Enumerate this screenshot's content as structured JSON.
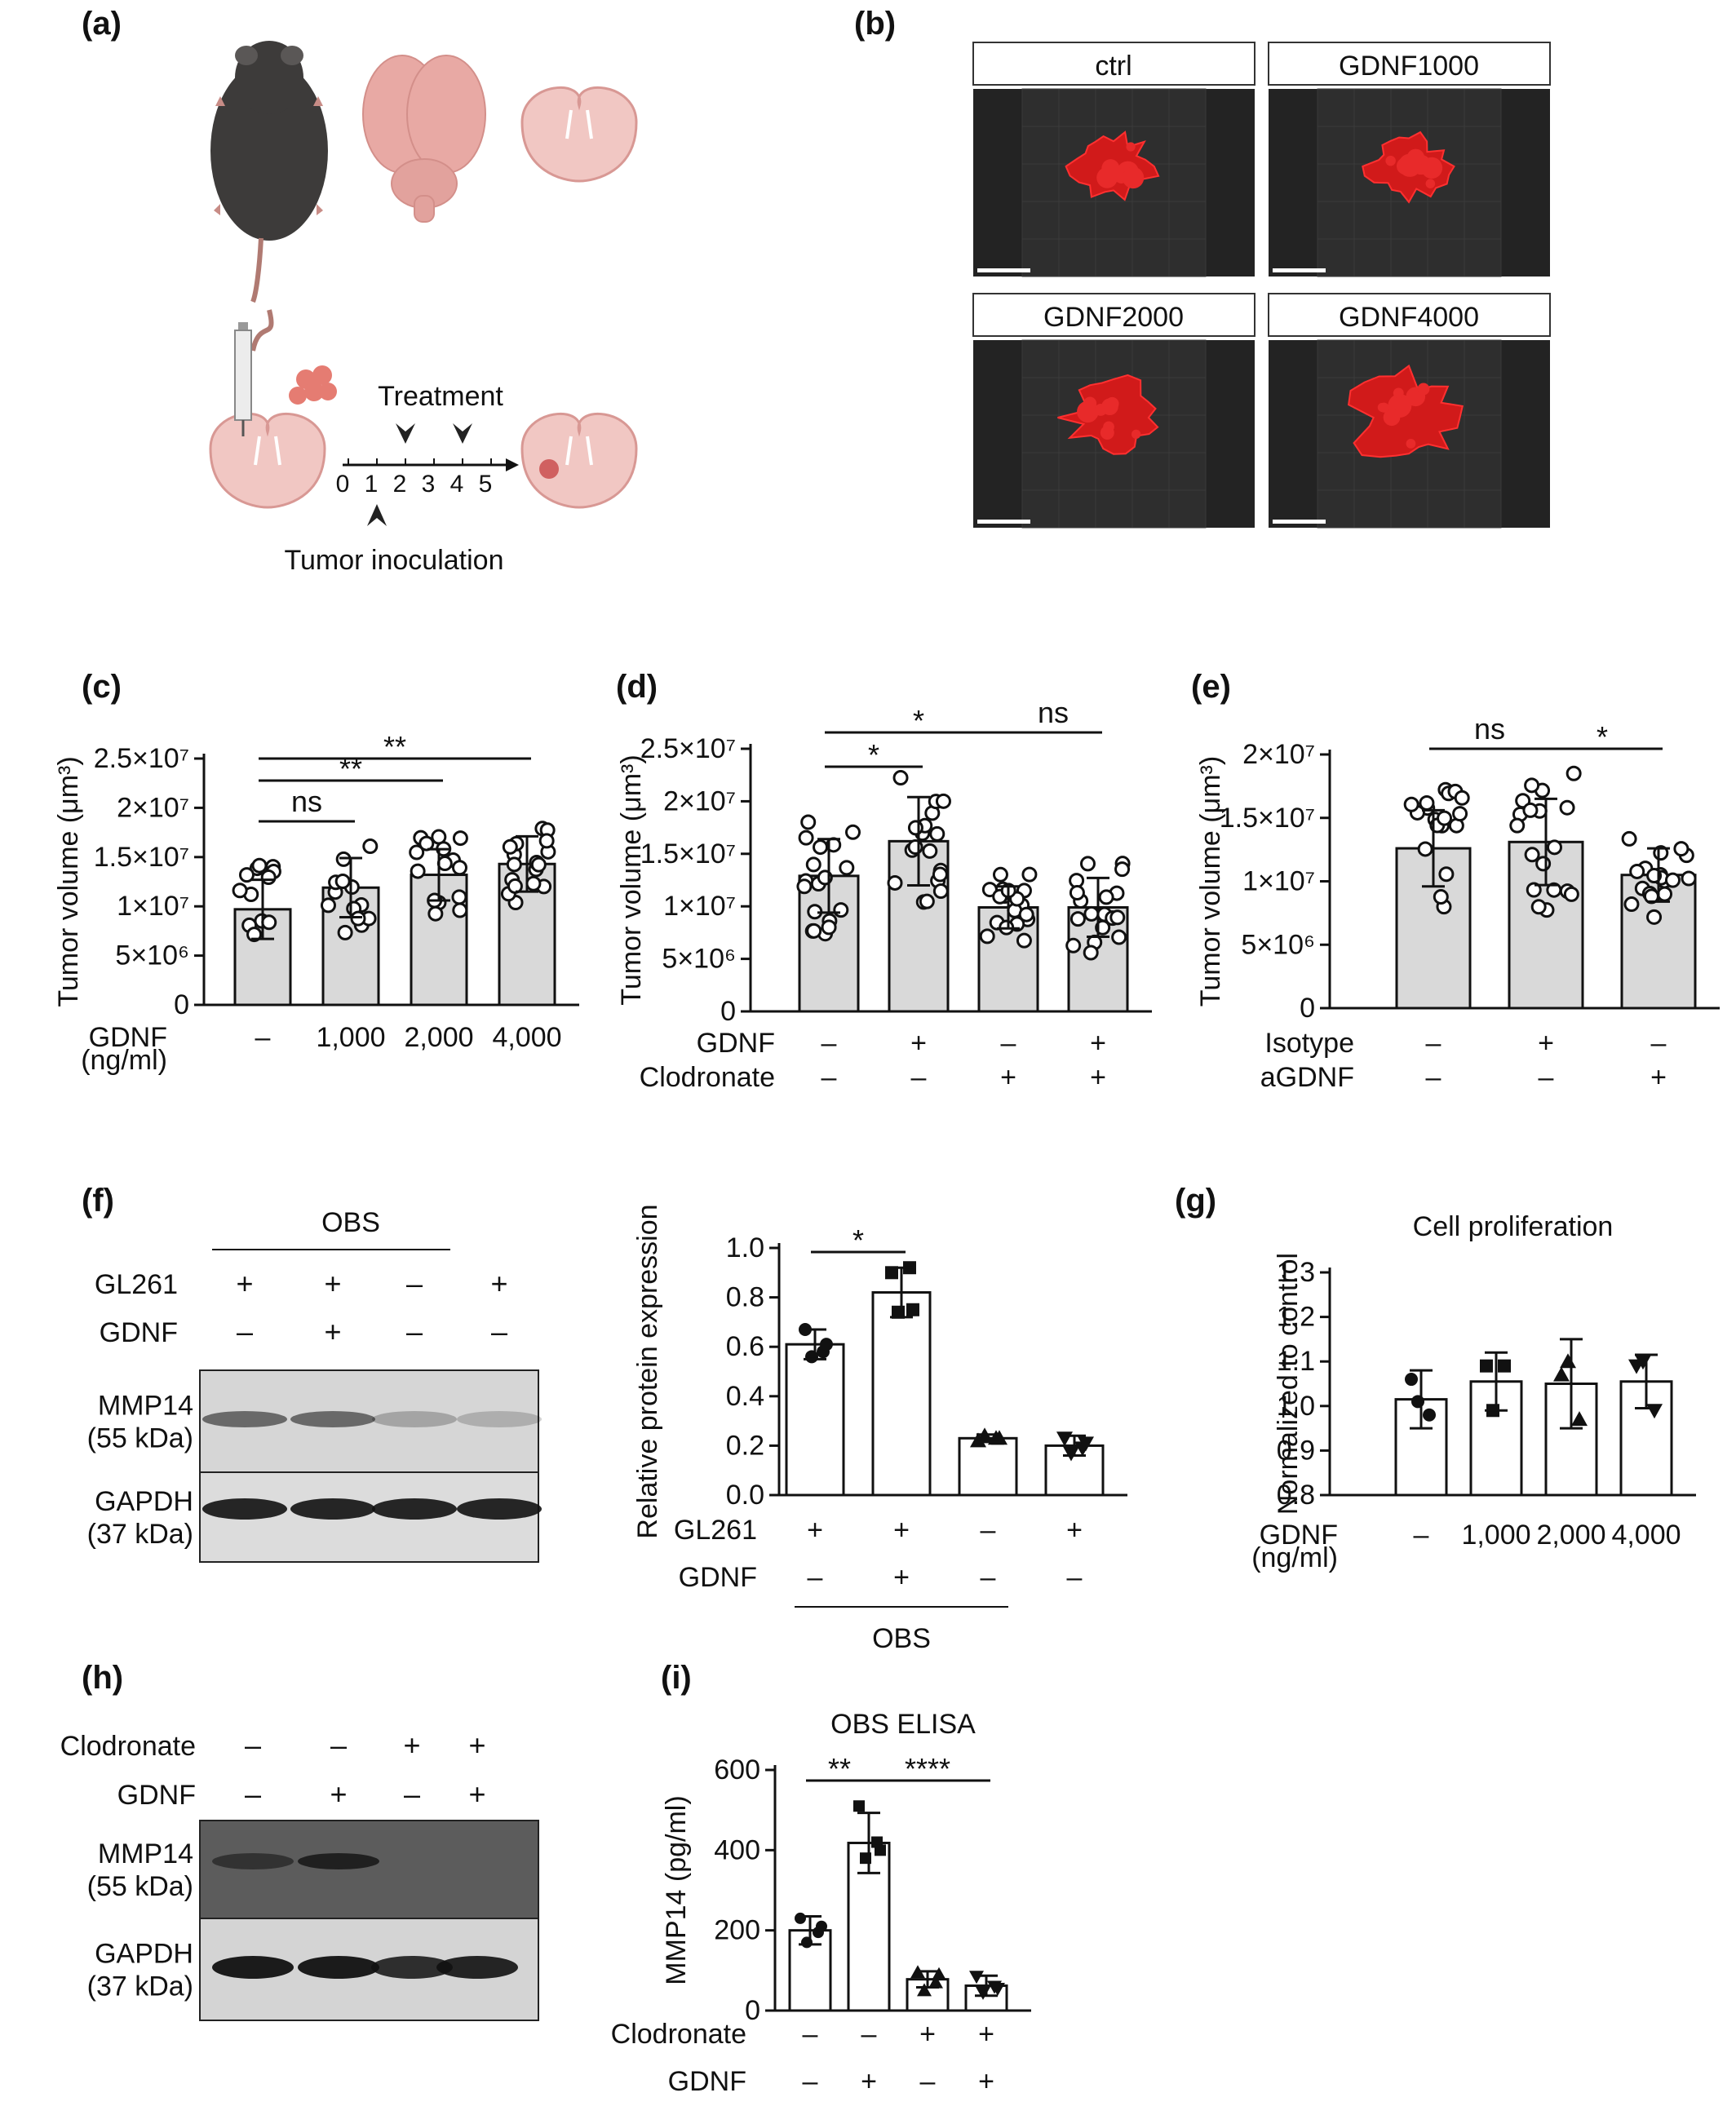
{
  "panels": {
    "a": {
      "label": "(a)",
      "treatment": "Treatment",
      "inoculation": "Tumor inoculation",
      "days": [
        "0",
        "1",
        "2",
        "3",
        "4",
        "5"
      ]
    },
    "b": {
      "label": "(b)",
      "titles": [
        "ctrl",
        "GDNF1000",
        "GDNF2000",
        "GDNF4000"
      ]
    },
    "c": {
      "label": "(c)"
    },
    "d": {
      "label": "(d)"
    },
    "e": {
      "label": "(e)"
    },
    "f": {
      "label": "(f)",
      "blot_title": "OBS",
      "rows": [
        {
          "name": "GL261",
          "signs": [
            "+",
            "+",
            "–",
            "+"
          ]
        },
        {
          "name": "GDNF",
          "signs": [
            "–",
            "+",
            "–",
            "–"
          ]
        }
      ],
      "bands": [
        {
          "name": "MMP14",
          "kda": "(55 kDa)"
        },
        {
          "name": "GAPDH",
          "kda": "(37 kDa)"
        }
      ]
    },
    "g": {
      "label": "(g)"
    },
    "h": {
      "label": "(h)",
      "rows": [
        {
          "name": "Clodronate",
          "signs": [
            "–",
            "–",
            "+",
            "+"
          ]
        },
        {
          "name": "GDNF",
          "signs": [
            "–",
            "+",
            "–",
            "+"
          ]
        }
      ],
      "bands": [
        {
          "name": "MMP14",
          "kda": "(55 kDa)"
        },
        {
          "name": "GAPDH",
          "kda": "(37 kDa)"
        }
      ]
    },
    "i": {
      "label": "(i)"
    }
  },
  "chart_data": [
    {
      "id": "c",
      "type": "bar",
      "ylabel": "Tumor volume (μm³)",
      "yticks": [
        "0",
        "5×10⁶",
        "1×10⁷",
        "1.5×10⁷",
        "2×10⁷",
        "2.5×10⁷"
      ],
      "ylim": [
        0,
        25000000
      ],
      "row_labels": [
        "GDNF",
        "(ng/ml)"
      ],
      "categories": [
        "–",
        "1,000",
        "2,000",
        "4,000"
      ],
      "values": [
        9700000,
        11900000,
        13200000,
        14300000
      ],
      "errors": [
        3000000,
        3000000,
        2600000,
        2800000
      ],
      "significance": [
        {
          "from": 0,
          "to": 1,
          "text": "ns"
        },
        {
          "from": 0,
          "to": 2,
          "text": "**"
        },
        {
          "from": 0,
          "to": 3,
          "text": "**"
        }
      ]
    },
    {
      "id": "d",
      "type": "bar",
      "ylabel": "Tumor volume (μm³)",
      "yticks": [
        "0",
        "5×10⁶",
        "1×10⁷",
        "1.5×10⁷",
        "2×10⁷",
        "2.5×10⁷"
      ],
      "ylim": [
        0,
        25000000
      ],
      "conditions": [
        {
          "name": "GDNF",
          "signs": [
            "–",
            "+",
            "–",
            "+"
          ]
        },
        {
          "name": "Clodronate",
          "signs": [
            "–",
            "–",
            "+",
            "+"
          ]
        }
      ],
      "values": [
        12900000,
        16200000,
        9900000,
        9900000
      ],
      "errors": [
        3500000,
        4200000,
        2000000,
        2800000
      ],
      "significance": [
        {
          "from": 0,
          "to": 1,
          "text": "*"
        },
        {
          "from": 0,
          "to": 2,
          "text": "*"
        },
        {
          "from": 2,
          "to": 3,
          "text": "ns"
        }
      ]
    },
    {
      "id": "e",
      "type": "bar",
      "ylabel": "Tumor volume (μm³)",
      "yticks": [
        "0",
        "5×10⁶",
        "1×10⁷",
        "1.5×10⁷",
        "2×10⁷"
      ],
      "ylim": [
        0,
        20000000
      ],
      "conditions": [
        {
          "name": "Isotype",
          "signs": [
            "–",
            "+",
            "–"
          ]
        },
        {
          "name": "aGDNF",
          "signs": [
            "–",
            "–",
            "+"
          ]
        }
      ],
      "values": [
        12600000,
        13100000,
        10500000
      ],
      "errors": [
        3000000,
        3400000,
        2100000
      ],
      "significance": [
        {
          "from": 0,
          "to": 1,
          "text": "ns"
        },
        {
          "from": 1,
          "to": 2,
          "text": "*"
        }
      ]
    },
    {
      "id": "f",
      "type": "bar",
      "ylabel": "Relative protein expression",
      "yticks": [
        "0.0",
        "0.2",
        "0.4",
        "0.6",
        "0.8",
        "1.0"
      ],
      "ylim": [
        0,
        1.0
      ],
      "conditions": [
        {
          "name": "GL261",
          "signs": [
            "+",
            "+",
            "–",
            "+"
          ]
        },
        {
          "name": "GDNF",
          "signs": [
            "–",
            "+",
            "–",
            "–"
          ]
        }
      ],
      "group_label": "OBS",
      "values": [
        0.61,
        0.82,
        0.23,
        0.2
      ],
      "errors": [
        0.06,
        0.1,
        0.015,
        0.04
      ],
      "points": [
        [
          0.67,
          0.58,
          0.56,
          0.61
        ],
        [
          0.9,
          0.92,
          0.74,
          0.75
        ],
        [
          0.22,
          0.23,
          0.24,
          0.23
        ],
        [
          0.23,
          0.19,
          0.17,
          0.21
        ]
      ],
      "markers": [
        "circle",
        "square",
        "triangle",
        "triangle-down"
      ],
      "significance": [
        {
          "from": 0,
          "to": 1,
          "text": "*"
        }
      ]
    },
    {
      "id": "g",
      "type": "bar",
      "title": "Cell proliferation",
      "ylabel": "Normalized to control",
      "yticks": [
        "0.8",
        "0.9",
        "1.0",
        "1.1",
        "1.2",
        "1.3"
      ],
      "ylim": [
        0.8,
        1.3
      ],
      "row_labels": [
        "GDNF",
        "(ng/ml)"
      ],
      "categories": [
        "–",
        "1,000",
        "2,000",
        "4,000"
      ],
      "values": [
        1.015,
        1.055,
        1.05,
        1.055
      ],
      "errors": [
        0.065,
        0.065,
        0.1,
        0.06
      ],
      "points": [
        [
          1.06,
          0.98,
          1.01
        ],
        [
          1.09,
          1.09,
          0.99
        ],
        [
          1.07,
          0.97,
          1.1
        ],
        [
          1.09,
          0.99,
          1.1
        ]
      ],
      "markers": [
        "circle",
        "square",
        "triangle",
        "triangle-down"
      ]
    },
    {
      "id": "i",
      "type": "bar",
      "title": "OBS ELISA",
      "ylabel": "MMP14 (pg/ml)",
      "yticks": [
        "0",
        "200",
        "400",
        "600"
      ],
      "ylim": [
        0,
        600
      ],
      "conditions": [
        {
          "name": "Clodronate",
          "signs": [
            "–",
            "–",
            "+",
            "+"
          ]
        },
        {
          "name": "GDNF",
          "signs": [
            "–",
            "+",
            "–",
            "+"
          ]
        }
      ],
      "values": [
        200,
        418,
        78,
        62
      ],
      "errors": [
        35,
        75,
        20,
        25
      ],
      "points": [
        [
          230,
          195,
          170,
          210
        ],
        [
          510,
          420,
          380,
          400
        ],
        [
          95,
          70,
          50,
          90
        ],
        [
          85,
          60,
          45,
          55
        ]
      ],
      "markers": [
        "circle",
        "square",
        "triangle",
        "triangle-down"
      ],
      "significance": [
        {
          "from": 0,
          "to": 1,
          "text": "**"
        },
        {
          "from": 1,
          "to": 3,
          "text": "****"
        }
      ]
    }
  ]
}
